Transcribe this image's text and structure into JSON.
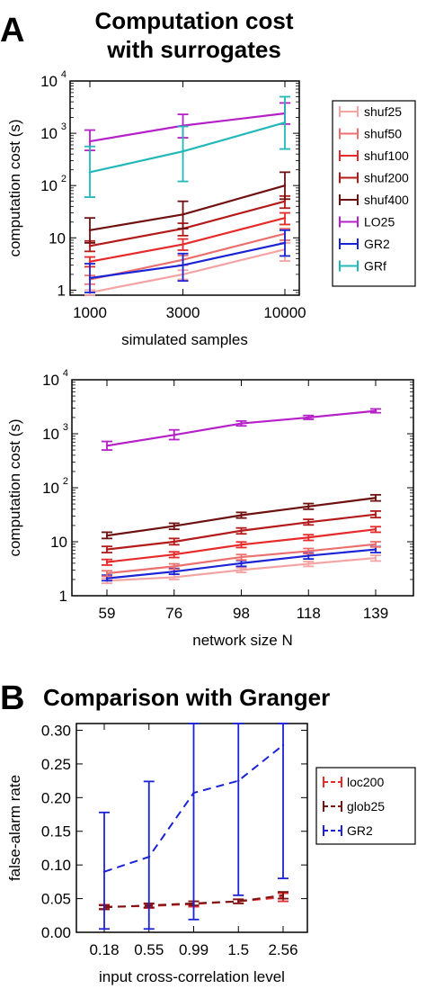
{
  "panels": {
    "a": {
      "letter": "A",
      "title_line1": "Computation cost",
      "title_line2": "with surrogates"
    },
    "b": {
      "letter": "B",
      "title": "Comparison with Granger"
    }
  },
  "colors": {
    "shuf25": "#f4a3a3",
    "shuf50": "#ec6f6f",
    "shuf100": "#e62a2a",
    "shuf200": "#b41a1a",
    "shuf400": "#6e1010",
    "LO25": "#b620c8",
    "GR2": "#1a23d6",
    "GRf": "#22b8b8",
    "loc200": "#e62a2a",
    "glob25": "#7a1414"
  },
  "chart_data": [
    {
      "id": "top",
      "type": "line",
      "xlabel": "simulated samples",
      "ylabel": "computation cost (s)",
      "yscale": "log",
      "ylim": [
        0.8,
        10000
      ],
      "x": [
        1000,
        3000,
        10000
      ],
      "x_tick_labels": [
        "1000",
        "3000",
        "10000"
      ],
      "y_ticks": [
        1,
        10,
        100,
        1000,
        10000
      ],
      "y_tick_labels": [
        "1",
        "10",
        "10²",
        "10³",
        "10⁴"
      ],
      "legend_position": "right",
      "series": [
        {
          "name": "shuf25",
          "values": [
            0.9,
            2.0,
            6.0
          ],
          "err_low": [
            0.8,
            1.6,
            3.6
          ],
          "err_high": [
            1.0,
            2.4,
            8.0
          ]
        },
        {
          "name": "shuf50",
          "values": [
            1.6,
            3.8,
            12
          ],
          "err_low": [
            1.3,
            3.0,
            9.0
          ],
          "err_high": [
            1.9,
            4.6,
            15
          ]
        },
        {
          "name": "shuf100",
          "values": [
            3.5,
            7.5,
            24
          ],
          "err_low": [
            2.8,
            5.8,
            18
          ],
          "err_high": [
            4.3,
            9.5,
            30
          ]
        },
        {
          "name": "shuf200",
          "values": [
            7,
            15,
            50
          ],
          "err_low": [
            5.5,
            11,
            37
          ],
          "err_high": [
            8.7,
            19,
            63
          ]
        },
        {
          "name": "shuf400",
          "values": [
            14,
            28,
            100
          ],
          "err_low": [
            8,
            15,
            55
          ],
          "err_high": [
            24,
            50,
            180
          ]
        },
        {
          "name": "LO25",
          "values": [
            700,
            1400,
            2400
          ],
          "err_low": [
            470,
            820,
            1500
          ],
          "err_high": [
            1150,
            2300,
            3800
          ]
        },
        {
          "name": "GR2",
          "values": [
            1.7,
            3.0,
            8.0
          ],
          "err_low": [
            0.9,
            1.5,
            4.5
          ],
          "err_high": [
            3.2,
            5.0,
            14
          ]
        },
        {
          "name": "GRf",
          "values": [
            180,
            450,
            1600
          ],
          "err_low": [
            60,
            120,
            500
          ],
          "err_high": [
            560,
            1350,
            5000
          ]
        }
      ]
    },
    {
      "id": "middle",
      "type": "line",
      "xlabel": "network size N",
      "ylabel": "computation cost (s)",
      "yscale": "log",
      "ylim": [
        1,
        10000
      ],
      "x_categories": [
        "59",
        "76",
        "98",
        "118",
        "139"
      ],
      "y_ticks": [
        1,
        10,
        100,
        1000,
        10000
      ],
      "y_tick_labels": [
        "1",
        "10",
        "10²",
        "10³",
        "10⁴"
      ],
      "series": [
        {
          "name": "shuf25",
          "values": [
            1.9,
            2.2,
            3.0,
            3.9,
            5.0
          ],
          "err_low": [
            1.7,
            2.0,
            2.7,
            3.5,
            4.4
          ],
          "err_high": [
            2.1,
            2.5,
            3.3,
            4.3,
            5.6
          ]
        },
        {
          "name": "GR2",
          "values": [
            2.1,
            2.8,
            4.0,
            5.5,
            7.2
          ],
          "err_low": [
            1.9,
            2.5,
            3.5,
            4.8,
            6.3
          ],
          "err_high": [
            2.4,
            3.2,
            4.5,
            6.2,
            8.1
          ]
        },
        {
          "name": "shuf50",
          "values": [
            2.6,
            3.5,
            5.2,
            6.7,
            9.0
          ],
          "err_low": [
            2.3,
            3.1,
            4.6,
            6.0,
            8.0
          ],
          "err_high": [
            2.9,
            3.9,
            5.8,
            7.5,
            10
          ]
        },
        {
          "name": "shuf100",
          "values": [
            4.2,
            5.8,
            8.8,
            12,
            17
          ],
          "err_low": [
            3.7,
            5.1,
            7.8,
            10.6,
            15
          ],
          "err_high": [
            4.7,
            6.5,
            9.9,
            13.5,
            19
          ]
        },
        {
          "name": "shuf200",
          "values": [
            7.2,
            10,
            16,
            23,
            32
          ],
          "err_low": [
            6.3,
            8.8,
            14,
            20.5,
            28
          ],
          "err_high": [
            8.2,
            11.5,
            18,
            26,
            37
          ]
        },
        {
          "name": "shuf400",
          "values": [
            13,
            19.5,
            31,
            45,
            65
          ],
          "err_low": [
            11.5,
            17,
            27.5,
            40,
            57
          ],
          "err_high": [
            15,
            22,
            35,
            51,
            74
          ]
        },
        {
          "name": "LO25",
          "values": [
            600,
            950,
            1550,
            2000,
            2650
          ],
          "err_low": [
            500,
            780,
            1400,
            1850,
            2450
          ],
          "err_high": [
            720,
            1180,
            1720,
            2180,
            2880
          ]
        }
      ]
    },
    {
      "id": "bottom",
      "type": "line",
      "xlabel": "input cross-correlation level",
      "ylabel": "false-alarm rate",
      "ylim": [
        0.0,
        0.31
      ],
      "x_categories": [
        "0.18",
        "0.55",
        "0.99",
        "1.5",
        "2.56"
      ],
      "y_ticks": [
        0.0,
        0.05,
        0.1,
        0.15,
        0.2,
        0.25,
        0.3
      ],
      "y_tick_labels": [
        "0.00",
        "0.05",
        "0.10",
        "0.15",
        "0.20",
        "0.25",
        "0.30"
      ],
      "legend_position": "right",
      "series": [
        {
          "name": "loc200",
          "values": [
            0.038,
            0.039,
            0.042,
            0.046,
            0.052
          ],
          "err_low": [
            0.035,
            0.036,
            0.038,
            0.043,
            0.046
          ],
          "err_high": [
            0.041,
            0.042,
            0.046,
            0.049,
            0.058
          ]
        },
        {
          "name": "glob25",
          "values": [
            0.037,
            0.04,
            0.043,
            0.046,
            0.055
          ],
          "err_low": [
            0.034,
            0.037,
            0.04,
            0.043,
            0.05
          ],
          "err_high": [
            0.04,
            0.043,
            0.046,
            0.049,
            0.06
          ]
        },
        {
          "name": "GR2",
          "values": [
            0.09,
            0.112,
            0.207,
            0.225,
            0.278
          ],
          "err_low": [
            0.005,
            0.005,
            0.019,
            0.055,
            0.08
          ],
          "err_high": [
            0.178,
            0.224,
            0.31,
            0.31,
            0.31
          ]
        }
      ]
    }
  ]
}
